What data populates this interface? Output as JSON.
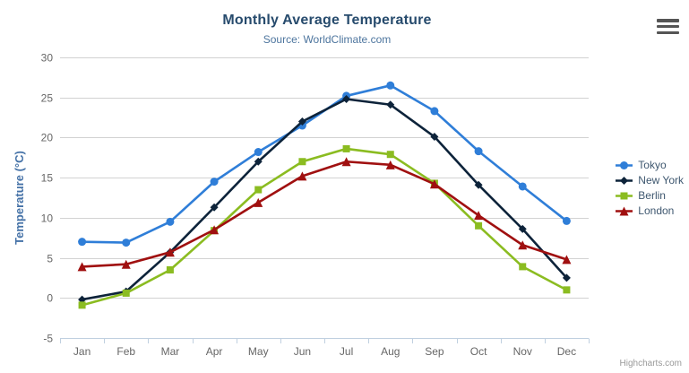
{
  "chart_data": {
    "type": "line",
    "title": "Monthly Average Temperature",
    "subtitle": "Source: WorldClimate.com",
    "categories": [
      "Jan",
      "Feb",
      "Mar",
      "Apr",
      "May",
      "Jun",
      "Jul",
      "Aug",
      "Sep",
      "Oct",
      "Nov",
      "Dec"
    ],
    "xlabel": "",
    "ylabel": "Temperature (°C)",
    "ylim": [
      -5,
      30
    ],
    "ytick_interval": 5,
    "yticks": [
      "-5",
      "0",
      "5",
      "10",
      "15",
      "20",
      "25",
      "30"
    ],
    "grid": true,
    "legend_position": "right-middle",
    "series": [
      {
        "name": "Tokyo",
        "color": "#2f7ed8",
        "marker": "circle",
        "values": [
          7.0,
          6.9,
          9.5,
          14.5,
          18.2,
          21.5,
          25.2,
          26.5,
          23.3,
          18.3,
          13.9,
          9.6
        ]
      },
      {
        "name": "New York",
        "color": "#0d233a",
        "marker": "diamond",
        "values": [
          -0.2,
          0.8,
          5.7,
          11.3,
          17.0,
          22.0,
          24.8,
          24.1,
          20.1,
          14.1,
          8.6,
          2.5
        ]
      },
      {
        "name": "Berlin",
        "color": "#8bbc21",
        "marker": "square",
        "values": [
          -0.9,
          0.6,
          3.5,
          8.4,
          13.5,
          17.0,
          18.6,
          17.9,
          14.3,
          9.0,
          3.9,
          1.0
        ]
      },
      {
        "name": "London",
        "color": "#a01010",
        "marker": "triangle",
        "values": [
          3.9,
          4.2,
          5.7,
          8.5,
          11.9,
          15.2,
          17.0,
          16.6,
          14.2,
          10.3,
          6.6,
          4.8
        ]
      }
    ]
  },
  "credits": "Highcharts.com",
  "icons": {
    "export_menu": "hamburger-icon"
  },
  "theme": {
    "title_color": "#274b6d",
    "subtitle_color": "#4d759e",
    "axis_title_color": "#4572a7",
    "axis_label_color": "#666666",
    "grid_color": "#d2d2d2",
    "axis_line_color": "#c0d0e0",
    "legend_text_color": "#3e576f",
    "credits_color": "#999999",
    "burger_color": "#555555",
    "background": "#ffffff"
  }
}
